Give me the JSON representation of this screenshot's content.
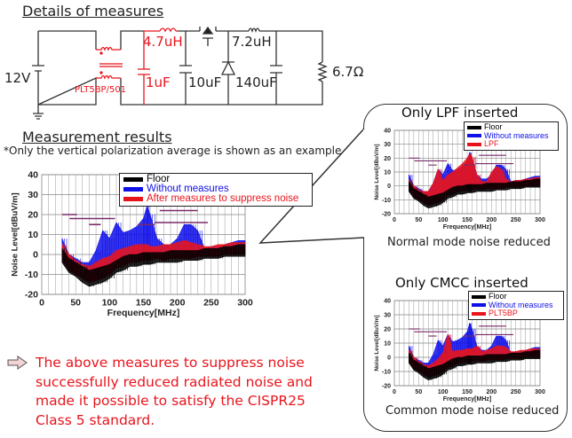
{
  "headings": {
    "details": "Details of measures",
    "results": "Measurement results",
    "note": "*Only the vertical polarization average is shown as an example."
  },
  "circuit": {
    "source": "12V",
    "cmcc": "PLT5BP/501",
    "inductor1": "4.7uH",
    "cap1": "1uF",
    "cap2": "10uF",
    "inductor2": "7.2uH",
    "cap3": "140uF",
    "load": "6.7Ω",
    "added_parts_color": "#e8141c"
  },
  "callouts": {
    "lpf_title": "Only LPF inserted",
    "lpf_caption": "Normal mode noise reduced",
    "cmcc_title": "Only CMCC inserted",
    "cmcc_caption": "Common mode noise reduced"
  },
  "conclusion": {
    "icon": "arrow-right-icon",
    "text": "The above measures to suppress noise successfully reduced radiated noise and made it possible to satisfy the CISPR25 Class 5 standard."
  },
  "chart_data": [
    {
      "id": "main",
      "type": "area",
      "xlabel": "Frequency[MHz]",
      "ylabel": "Noise Level[dBuV/m]",
      "xlim": [
        0,
        300
      ],
      "ylim": [
        -20,
        40
      ],
      "xticks": [
        0,
        50,
        100,
        150,
        200,
        250,
        300
      ],
      "yticks": [
        -20,
        -10,
        0,
        10,
        20,
        30,
        40
      ],
      "grid": true,
      "legend": "top-center",
      "x": [
        30,
        40,
        50,
        60,
        70,
        80,
        90,
        100,
        110,
        120,
        130,
        140,
        150,
        155,
        160,
        170,
        180,
        190,
        200,
        210,
        220,
        230,
        240,
        250,
        260,
        270,
        280,
        290,
        300
      ],
      "series": [
        {
          "name": "Without measures",
          "color": "#1010e8",
          "max": [
            8,
            0,
            -2,
            -4,
            -4,
            2,
            12,
            8,
            16,
            11,
            12,
            14,
            18,
            24,
            20,
            8,
            5,
            5,
            8,
            15,
            15,
            12,
            3,
            4,
            4,
            5,
            6,
            7,
            7
          ],
          "min": [
            -3,
            -8,
            -10,
            -12,
            -14,
            -13,
            -12,
            -10,
            -7,
            -6,
            -4,
            -4,
            -3,
            -3,
            -3,
            -2,
            -3,
            -2,
            -2,
            -2,
            -2,
            -1,
            -1,
            -1,
            -1,
            0,
            0,
            0,
            0
          ]
        },
        {
          "name": "After measures to suppress noise",
          "color": "#e8141c",
          "max": [
            5,
            0,
            -3,
            -5,
            -6,
            -4,
            -2,
            -1,
            2,
            3,
            4,
            5,
            5,
            5,
            4,
            4,
            5,
            5,
            6,
            7,
            6,
            5,
            4,
            4,
            5,
            5,
            6,
            6,
            6
          ],
          "min": [
            -3,
            -8,
            -10,
            -12,
            -14,
            -13,
            -12,
            -10,
            -7,
            -6,
            -4,
            -4,
            -3,
            -3,
            -3,
            -2,
            -3,
            -2,
            -2,
            -2,
            -2,
            -1,
            -1,
            -1,
            -1,
            0,
            0,
            0,
            0
          ]
        },
        {
          "name": "Floor",
          "color": "#000000",
          "max": [
            3,
            -2,
            -4,
            -6,
            -8,
            -7,
            -6,
            -5,
            -3,
            -1,
            0,
            0,
            1,
            1,
            1,
            1,
            1,
            2,
            2,
            2,
            2,
            2,
            3,
            3,
            3,
            4,
            4,
            5,
            5
          ],
          "min": [
            -4,
            -9,
            -11,
            -14,
            -16,
            -15,
            -14,
            -12,
            -9,
            -8,
            -6,
            -6,
            -5,
            -5,
            -5,
            -4,
            -4,
            -4,
            -4,
            -3,
            -3,
            -3,
            -2,
            -2,
            -2,
            -1,
            -1,
            -1,
            -1
          ]
        }
      ],
      "limits": [
        {
          "x": [
            30,
            52
          ],
          "y": 20
        },
        {
          "x": [
            41,
            108
          ],
          "y": 18
        },
        {
          "x": [
            70,
            87
          ],
          "y": 15
        },
        {
          "x": [
            142,
            167
          ],
          "y": 15
        },
        {
          "x": [
            174,
            230
          ],
          "y": 22
        },
        {
          "x": [
            167,
            245
          ],
          "y": 16
        }
      ],
      "limit_color": "#7a2a6a"
    },
    {
      "id": "lpf",
      "type": "area",
      "xlabel": "Frequency[MHz]",
      "ylabel": "Noise Level[dBuV/m]",
      "xlim": [
        0,
        300
      ],
      "ylim": [
        -20,
        40
      ],
      "xticks": [
        0,
        50,
        100,
        150,
        200,
        250,
        300
      ],
      "yticks": [
        -20,
        -10,
        0,
        10,
        20,
        30,
        40
      ],
      "grid": true,
      "legend": "top-right",
      "x": [
        30,
        40,
        50,
        60,
        70,
        80,
        90,
        100,
        110,
        120,
        130,
        140,
        150,
        155,
        160,
        170,
        180,
        190,
        200,
        210,
        220,
        230,
        240,
        250,
        260,
        270,
        280,
        290,
        300
      ],
      "series": [
        {
          "name": "Without measures",
          "color": "#1010e8",
          "max": [
            8,
            0,
            -2,
            -4,
            -4,
            2,
            12,
            8,
            16,
            11,
            12,
            14,
            18,
            24,
            20,
            8,
            5,
            5,
            8,
            15,
            15,
            12,
            3,
            4,
            4,
            5,
            6,
            7,
            7
          ],
          "min": [
            -3,
            -8,
            -10,
            -12,
            -14,
            -13,
            -12,
            -10,
            -7,
            -6,
            -4,
            -4,
            -3,
            -3,
            -3,
            -2,
            -3,
            -2,
            -2,
            -2,
            -2,
            -1,
            -1,
            -1,
            -1,
            0,
            0,
            0,
            0
          ]
        },
        {
          "name": "LPF",
          "color": "#e8141c",
          "max": [
            4,
            0,
            -3,
            -4,
            -4,
            2,
            12,
            4,
            8,
            10,
            13,
            16,
            20,
            23,
            21,
            8,
            3,
            3,
            10,
            14,
            12,
            5,
            3,
            4,
            4,
            5,
            5,
            6,
            6
          ],
          "min": [
            -3,
            -8,
            -10,
            -12,
            -14,
            -13,
            -12,
            -10,
            -7,
            -6,
            -4,
            -4,
            -3,
            -3,
            -3,
            -2,
            -3,
            -2,
            -2,
            -2,
            -2,
            -1,
            -1,
            -1,
            -1,
            0,
            0,
            0,
            0
          ]
        },
        {
          "name": "Floor",
          "color": "#000000",
          "max": [
            3,
            -2,
            -4,
            -6,
            -8,
            -7,
            -6,
            -5,
            -3,
            -1,
            0,
            0,
            1,
            1,
            1,
            1,
            1,
            2,
            2,
            2,
            2,
            2,
            3,
            3,
            3,
            4,
            4,
            5,
            5
          ],
          "min": [
            -4,
            -9,
            -11,
            -14,
            -16,
            -15,
            -14,
            -12,
            -9,
            -8,
            -6,
            -6,
            -5,
            -5,
            -5,
            -4,
            -4,
            -4,
            -4,
            -3,
            -3,
            -3,
            -2,
            -2,
            -2,
            -1,
            -1,
            -1,
            -1
          ]
        }
      ],
      "limits": [
        {
          "x": [
            30,
            52
          ],
          "y": 20
        },
        {
          "x": [
            41,
            108
          ],
          "y": 18
        },
        {
          "x": [
            70,
            87
          ],
          "y": 15
        },
        {
          "x": [
            142,
            167
          ],
          "y": 15
        },
        {
          "x": [
            174,
            230
          ],
          "y": 22
        },
        {
          "x": [
            167,
            245
          ],
          "y": 16
        }
      ],
      "limit_color": "#7a2a6a"
    },
    {
      "id": "cmcc",
      "type": "area",
      "xlabel": "Frequency[MHz]",
      "ylabel": "Noise Level[dBuV/m]",
      "xlim": [
        0,
        300
      ],
      "ylim": [
        -20,
        40
      ],
      "xticks": [
        0,
        50,
        100,
        150,
        200,
        250,
        300
      ],
      "yticks": [
        -20,
        -10,
        0,
        10,
        20,
        30,
        40
      ],
      "grid": true,
      "legend": "top-right",
      "x": [
        30,
        40,
        50,
        60,
        70,
        80,
        90,
        100,
        110,
        120,
        130,
        140,
        150,
        155,
        160,
        170,
        180,
        190,
        200,
        210,
        220,
        230,
        240,
        250,
        260,
        270,
        280,
        290,
        300
      ],
      "series": [
        {
          "name": "Without measures",
          "color": "#1010e8",
          "max": [
            8,
            0,
            -2,
            -4,
            -4,
            2,
            12,
            8,
            16,
            11,
            12,
            14,
            18,
            24,
            20,
            8,
            5,
            5,
            8,
            15,
            15,
            12,
            3,
            4,
            4,
            5,
            6,
            7,
            7
          ],
          "min": [
            -3,
            -8,
            -10,
            -12,
            -14,
            -13,
            -12,
            -10,
            -7,
            -6,
            -4,
            -4,
            -3,
            -3,
            -3,
            -2,
            -3,
            -2,
            -2,
            -2,
            -2,
            -1,
            -1,
            -1,
            -1,
            0,
            0,
            0,
            0
          ]
        },
        {
          "name": "PLT5BP",
          "color": "#e8141c",
          "max": [
            5,
            0,
            -3,
            -5,
            -6,
            -4,
            -1,
            3,
            16,
            4,
            5,
            5,
            6,
            6,
            6,
            8,
            4,
            5,
            6,
            8,
            8,
            7,
            4,
            4,
            5,
            5,
            6,
            6,
            6
          ],
          "min": [
            -3,
            -8,
            -10,
            -12,
            -14,
            -13,
            -12,
            -10,
            -7,
            -6,
            -4,
            -4,
            -3,
            -3,
            -3,
            -2,
            -3,
            -2,
            -2,
            -2,
            -2,
            -1,
            -1,
            -1,
            -1,
            0,
            0,
            0,
            0
          ]
        },
        {
          "name": "Floor",
          "color": "#000000",
          "max": [
            3,
            -2,
            -4,
            -6,
            -8,
            -7,
            -6,
            -5,
            -3,
            -1,
            0,
            0,
            1,
            1,
            1,
            1,
            1,
            2,
            2,
            2,
            2,
            2,
            3,
            3,
            3,
            4,
            4,
            5,
            5
          ],
          "min": [
            -4,
            -9,
            -11,
            -14,
            -16,
            -15,
            -14,
            -12,
            -9,
            -8,
            -6,
            -6,
            -5,
            -5,
            -5,
            -4,
            -4,
            -4,
            -4,
            -3,
            -3,
            -3,
            -2,
            -2,
            -2,
            -1,
            -1,
            -1,
            -1
          ]
        }
      ],
      "limits": [
        {
          "x": [
            30,
            52
          ],
          "y": 20
        },
        {
          "x": [
            41,
            108
          ],
          "y": 18
        },
        {
          "x": [
            70,
            87
          ],
          "y": 15
        },
        {
          "x": [
            142,
            167
          ],
          "y": 15
        },
        {
          "x": [
            174,
            230
          ],
          "y": 22
        },
        {
          "x": [
            167,
            245
          ],
          "y": 16
        }
      ],
      "limit_color": "#7a2a6a"
    }
  ]
}
